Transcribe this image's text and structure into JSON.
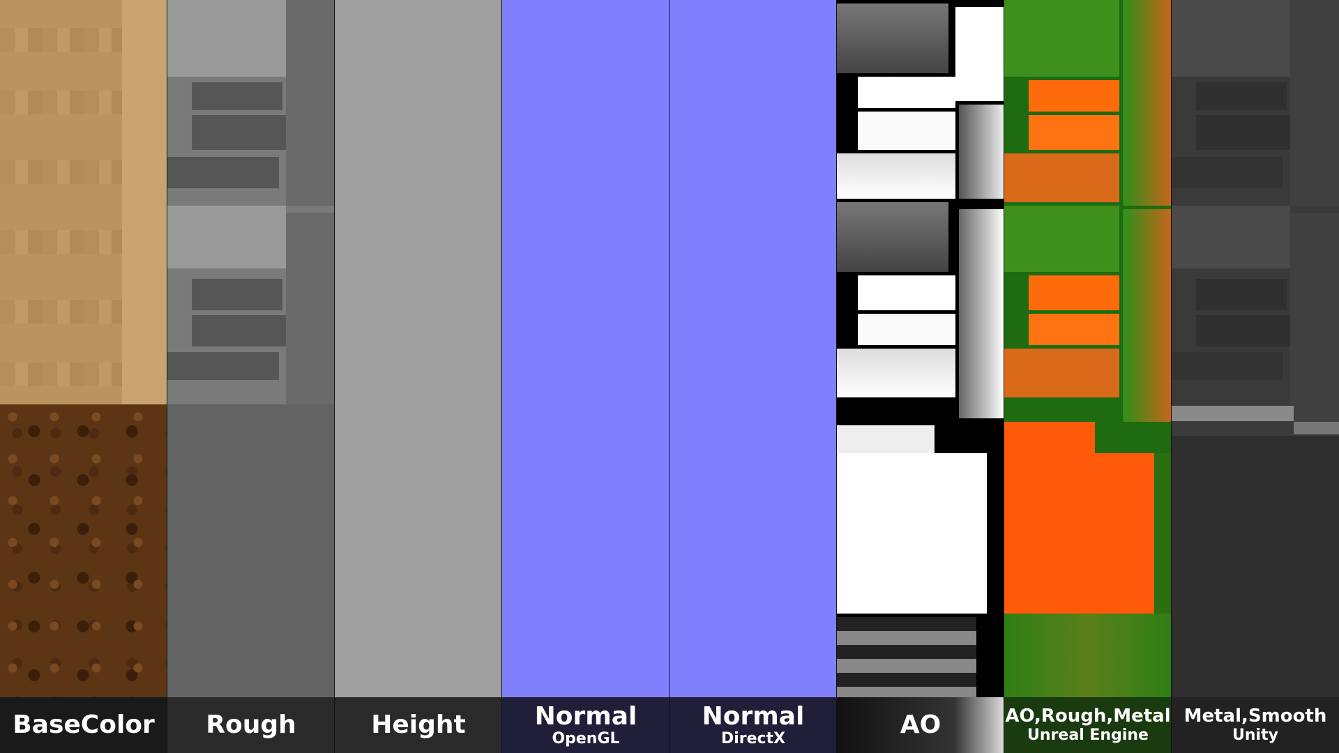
{
  "panels": [
    {
      "id": "basecolor",
      "title": "BaseColor",
      "subtitle": ""
    },
    {
      "id": "rough",
      "title": "Rough",
      "subtitle": ""
    },
    {
      "id": "height",
      "title": "Height",
      "subtitle": ""
    },
    {
      "id": "normal-opengl",
      "title": "Normal",
      "subtitle": "OpenGL"
    },
    {
      "id": "normal-directx",
      "title": "Normal",
      "subtitle": "DirectX"
    },
    {
      "id": "ao",
      "title": "AO",
      "subtitle": ""
    },
    {
      "id": "orm",
      "title": "AO,Rough,Metal",
      "subtitle": "Unreal Engine"
    },
    {
      "id": "metal-smooth",
      "title": "Metal,Smooth",
      "subtitle": "Unity"
    }
  ],
  "colors": {
    "normal_flat": "#8080ff",
    "height_gray": "#a0a0a0",
    "orm_orange": "#ff5a0a",
    "orm_green": "#2f8f1a"
  }
}
